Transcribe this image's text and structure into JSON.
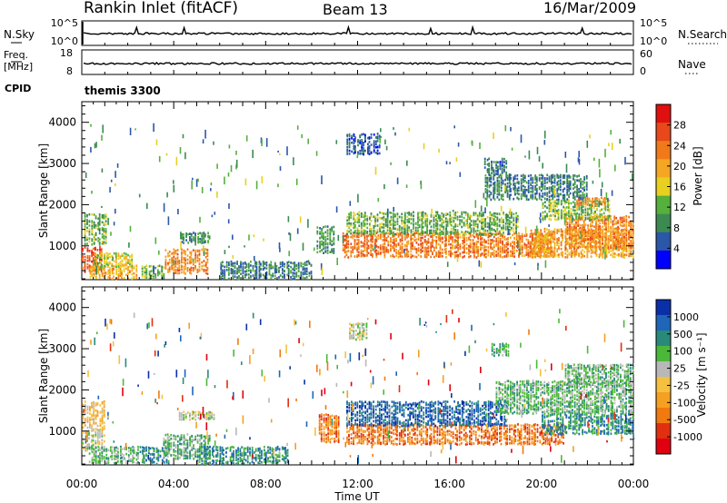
{
  "header": {
    "station": "Rankin Inlet (fitACF)",
    "beam": "Beam 13",
    "date": "16/Mar/2009"
  },
  "top_strips": {
    "left_top_label": "N.Sky",
    "left_top_ticks": [
      "10^5",
      "10^0"
    ],
    "right_top_label": "N.Search",
    "right_top_ticks": [
      "10^5",
      "10^0"
    ],
    "left_mid_label_1": "Freq.",
    "left_mid_label_2": "[MHz]",
    "left_mid_ticks": [
      "18",
      "8"
    ],
    "right_mid_label": "Nave",
    "right_mid_ticks": [
      "60",
      "0"
    ],
    "cpid_label": "CPID",
    "cpid_value": "themis 3300"
  },
  "colors": {
    "power": [
      "#0000ff",
      "#2b57a8",
      "#3c8a52",
      "#55b03c",
      "#e8d020",
      "#f5a623",
      "#f07a1a",
      "#e8481a",
      "#e01010"
    ],
    "velocity": [
      "#0b2fa8",
      "#1f66b8",
      "#2a8a7a",
      "#4cb83a",
      "#b8b8b8",
      "#f5c040",
      "#f5a020",
      "#f07a10",
      "#e03010",
      "#e00010"
    ]
  },
  "chart_data": [
    {
      "type": "heatmap",
      "panel": "power",
      "ylabel": "Slant Range [km]",
      "y_ticks": [
        1000,
        2000,
        3000,
        4000
      ],
      "ylim": [
        180,
        4500
      ],
      "xlim": [
        0,
        24
      ],
      "colorbar_label": "Power [dB]",
      "colorbar_ticks": [
        "4",
        "8",
        "12",
        "16",
        "20",
        "24",
        "28"
      ],
      "blobs": [
        {
          "t0": 0.0,
          "t1": 0.9,
          "r0": 350,
          "r1": 950,
          "v": 26
        },
        {
          "t0": 0.1,
          "t1": 1.1,
          "r0": 1000,
          "r1": 1750,
          "v": 12
        },
        {
          "t0": 0.3,
          "t1": 2.4,
          "r0": 180,
          "r1": 500,
          "v": 20
        },
        {
          "t0": 0.5,
          "t1": 2.2,
          "r0": 450,
          "r1": 800,
          "v": 16
        },
        {
          "t0": 3.6,
          "t1": 5.5,
          "r0": 300,
          "r1": 900,
          "v": 22
        },
        {
          "t0": 4.3,
          "t1": 5.6,
          "r0": 1050,
          "r1": 1300,
          "v": 10
        },
        {
          "t0": 2.6,
          "t1": 3.6,
          "r0": 180,
          "r1": 500,
          "v": 12
        },
        {
          "t0": 10.2,
          "t1": 11.0,
          "r0": 800,
          "r1": 1450,
          "v": 10
        },
        {
          "t0": 11.3,
          "t1": 20.5,
          "r0": 700,
          "r1": 1300,
          "v": 23
        },
        {
          "t0": 11.5,
          "t1": 19.0,
          "r0": 1250,
          "r1": 1800,
          "v": 12
        },
        {
          "t0": 19.5,
          "t1": 24.0,
          "r0": 700,
          "r1": 1400,
          "v": 20
        },
        {
          "t0": 21.0,
          "t1": 24.0,
          "r0": 900,
          "r1": 1700,
          "v": 22
        },
        {
          "t0": 20.0,
          "t1": 23.0,
          "r0": 1600,
          "r1": 2100,
          "v": 13
        },
        {
          "t0": 21.5,
          "t1": 22.8,
          "r0": 1950,
          "r1": 2150,
          "v": 22
        },
        {
          "t0": 17.5,
          "t1": 22.0,
          "r0": 2100,
          "r1": 2700,
          "v": 8
        },
        {
          "t0": 17.5,
          "t1": 18.5,
          "r0": 2700,
          "r1": 3100,
          "v": 7
        },
        {
          "t0": 11.5,
          "t1": 13.0,
          "r0": 3200,
          "r1": 3700,
          "v": 6
        },
        {
          "t0": 6.0,
          "t1": 10.0,
          "r0": 180,
          "r1": 600,
          "v": 8
        }
      ]
    },
    {
      "type": "heatmap",
      "panel": "velocity",
      "ylabel": "Slant Range [km]",
      "y_ticks": [
        1000,
        2000,
        3000,
        4000
      ],
      "ylim": [
        180,
        4500
      ],
      "xlim": [
        0,
        24
      ],
      "xlabel": "Time UT",
      "x_tick_labels": [
        "00:00",
        "04:00",
        "08:00",
        "12:00",
        "16:00",
        "20:00",
        "00:00"
      ],
      "colorbar_label": "Velocity [m s⁻¹]",
      "colorbar_ticks": [
        "1000",
        "500",
        "100",
        "25",
        "-25",
        "-100",
        "-500",
        "-1000"
      ],
      "blobs": [
        {
          "t0": 0.0,
          "t1": 1.0,
          "r0": 500,
          "r1": 1000,
          "v": 4
        },
        {
          "t0": 0.0,
          "t1": 1.0,
          "r0": 1000,
          "r1": 1700,
          "v": 5
        },
        {
          "t0": 0.3,
          "t1": 2.5,
          "r0": 180,
          "r1": 600,
          "v": 3
        },
        {
          "t0": 2.5,
          "t1": 3.8,
          "r0": 180,
          "r1": 600,
          "v": 2
        },
        {
          "t0": 3.5,
          "t1": 5.6,
          "r0": 300,
          "r1": 900,
          "v": 3
        },
        {
          "t0": 4.2,
          "t1": 5.8,
          "r0": 1250,
          "r1": 1450,
          "v": 4
        },
        {
          "t0": 5.0,
          "t1": 9.0,
          "r0": 180,
          "r1": 600,
          "v": 2
        },
        {
          "t0": 10.3,
          "t1": 11.2,
          "r0": 700,
          "r1": 1400,
          "v": 7
        },
        {
          "t0": 11.5,
          "t1": 21.0,
          "r0": 650,
          "r1": 1150,
          "v": 7
        },
        {
          "t0": 11.5,
          "t1": 18.5,
          "r0": 1100,
          "r1": 1700,
          "v": 1
        },
        {
          "t0": 18.0,
          "t1": 24.0,
          "r0": 1400,
          "r1": 2200,
          "v": 3
        },
        {
          "t0": 20.0,
          "t1": 24.0,
          "r0": 900,
          "r1": 1400,
          "v": 2
        },
        {
          "t0": 21.0,
          "t1": 24.0,
          "r0": 2100,
          "r1": 2600,
          "v": 3
        },
        {
          "t0": 11.6,
          "t1": 12.4,
          "r0": 3200,
          "r1": 3600,
          "v": 4
        },
        {
          "t0": 17.8,
          "t1": 18.6,
          "r0": 2800,
          "r1": 3100,
          "v": 3
        }
      ]
    }
  ]
}
